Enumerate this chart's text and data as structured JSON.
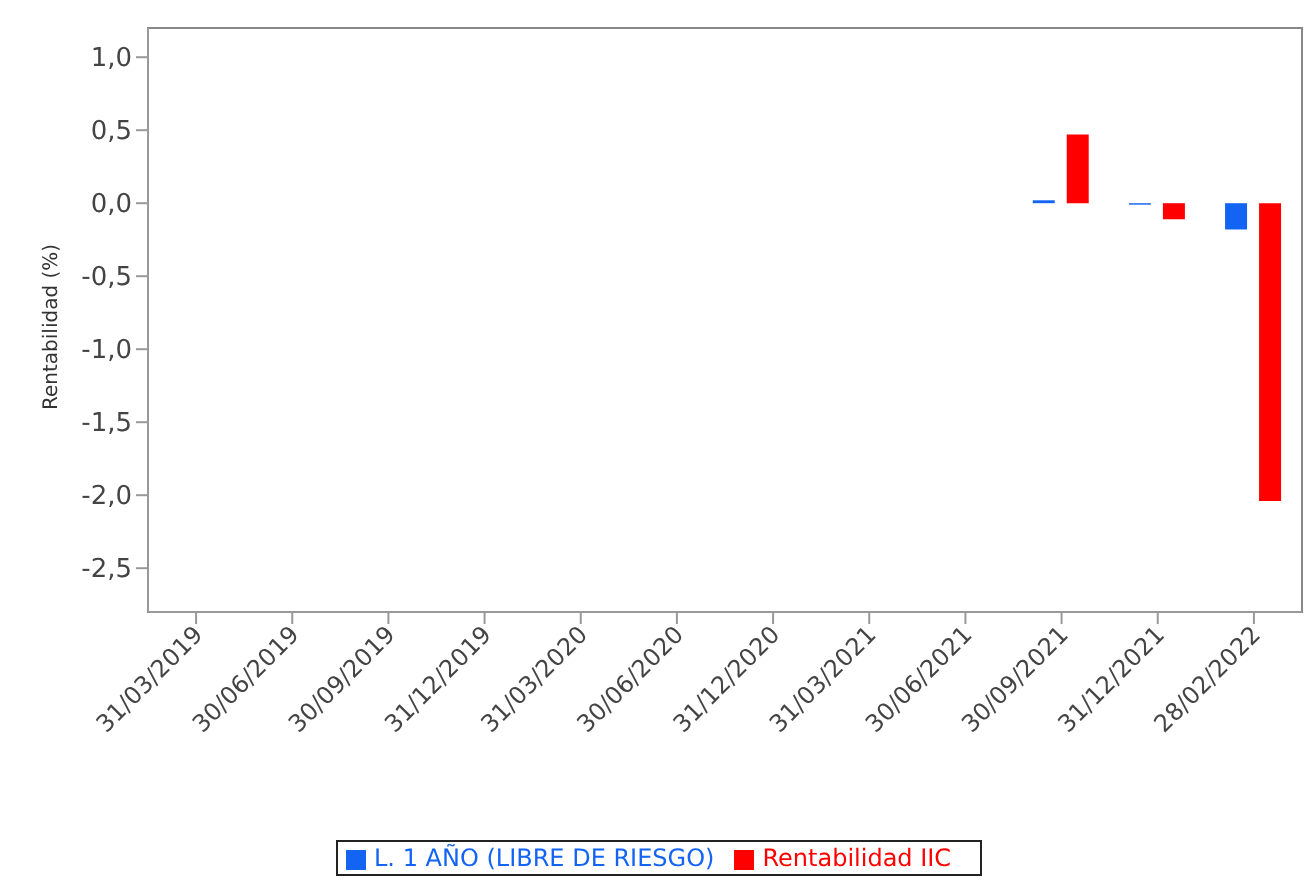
{
  "chart_data": {
    "type": "bar",
    "ylabel": "Rentabilidad (%)",
    "categories": [
      "31/03/2019",
      "30/06/2019",
      "30/09/2019",
      "31/12/2019",
      "31/03/2020",
      "30/06/2020",
      "31/12/2020",
      "31/03/2021",
      "30/06/2021",
      "30/09/2021",
      "31/12/2021",
      "28/02/2022"
    ],
    "series": [
      {
        "name": "L. 1 AÑO (LIBRE DE RIESGO)",
        "color": "#1464f4",
        "values": [
          null,
          null,
          null,
          null,
          null,
          null,
          null,
          null,
          null,
          0.02,
          -0.01,
          -0.18
        ]
      },
      {
        "name": "Rentabilidad IIC",
        "color": "#ff0000",
        "values": [
          null,
          null,
          null,
          null,
          null,
          null,
          null,
          null,
          null,
          0.47,
          -0.11,
          -2.04
        ]
      }
    ],
    "ylim": [
      -2.8,
      1.2
    ],
    "yticks": [
      {
        "value": 1,
        "label": "1,0"
      },
      {
        "value": 0.5,
        "label": "0,5"
      },
      {
        "value": 0,
        "label": "0,0"
      },
      {
        "value": -0.5,
        "label": "-0,5"
      },
      {
        "value": -1,
        "label": "-1,0"
      },
      {
        "value": -1.5,
        "label": "-1,5"
      },
      {
        "value": -2,
        "label": "-2,0"
      },
      {
        "value": -2.5,
        "label": "-2,5"
      }
    ],
    "grid": false,
    "legend": "bottom"
  }
}
